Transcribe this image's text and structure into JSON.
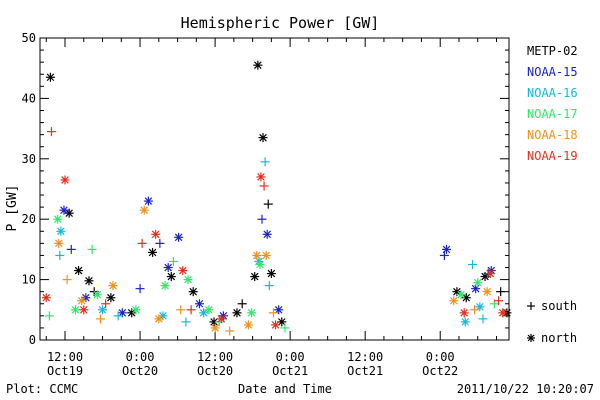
{
  "chart_data": {
    "type": "scatter",
    "title": "Hemispheric Power [GW]",
    "xlabel": "Date and Time",
    "ylabel": "P [GW]",
    "ylim": [
      0,
      50
    ],
    "xlim": [
      "2011-10-19 08:00",
      "2011-10-22 11:00"
    ],
    "yticks": [
      0,
      10,
      20,
      30,
      40,
      50
    ],
    "xticks": [
      {
        "t": "2011-10-19 12:00",
        "line1": "12:00",
        "line2": "Oct19"
      },
      {
        "t": "2011-10-20 00:00",
        "line1": "0:00",
        "line2": "Oct20"
      },
      {
        "t": "2011-10-20 12:00",
        "line1": "12:00",
        "line2": "Oct20"
      },
      {
        "t": "2011-10-21 00:00",
        "line1": "0:00",
        "line2": "Oct21"
      },
      {
        "t": "2011-10-21 12:00",
        "line1": "12:00",
        "line2": "Oct21"
      },
      {
        "t": "2011-10-22 00:00",
        "line1": "0:00",
        "line2": "Oct22"
      }
    ],
    "grid": false,
    "legend_position": "right",
    "markers": [
      {
        "symbol": "+",
        "label": "south"
      },
      {
        "symbol": "*",
        "label": "north"
      }
    ],
    "series": [
      {
        "name": "METP-02",
        "color": "#000000",
        "north": [
          {
            "x": "2011-10-19 09:40",
            "y": 43.5
          },
          {
            "x": "2011-10-19 12:40",
            "y": 21.0
          },
          {
            "x": "2011-10-19 14:10",
            "y": 11.5
          },
          {
            "x": "2011-10-19 15:50",
            "y": 9.8
          },
          {
            "x": "2011-10-19 19:20",
            "y": 7.0
          },
          {
            "x": "2011-10-19 22:40",
            "y": 4.5
          },
          {
            "x": "2011-10-20 02:00",
            "y": 14.5
          },
          {
            "x": "2011-10-20 05:00",
            "y": 10.5
          },
          {
            "x": "2011-10-20 08:30",
            "y": 8.0
          },
          {
            "x": "2011-10-20 11:50",
            "y": 3.0
          },
          {
            "x": "2011-10-20 15:30",
            "y": 4.5
          },
          {
            "x": "2011-10-20 18:20",
            "y": 10.5
          },
          {
            "x": "2011-10-20 18:50",
            "y": 45.5
          },
          {
            "x": "2011-10-20 19:40",
            "y": 33.5
          },
          {
            "x": "2011-10-20 21:00",
            "y": 11.0
          },
          {
            "x": "2011-10-20 22:40",
            "y": 3.0
          },
          {
            "x": "2011-10-22 02:40",
            "y": 8.0
          },
          {
            "x": "2011-10-22 04:10",
            "y": 7.0
          },
          {
            "x": "2011-10-22 07:10",
            "y": 10.5
          },
          {
            "x": "2011-10-22 10:40",
            "y": 4.5
          }
        ],
        "south": [
          {
            "x": "2011-10-19 16:40",
            "y": 8.0
          },
          {
            "x": "2011-10-20 16:20",
            "y": 6.0
          },
          {
            "x": "2011-10-20 20:30",
            "y": 22.5
          },
          {
            "x": "2011-10-22 09:40",
            "y": 8.0
          }
        ]
      },
      {
        "name": "NOAA-15",
        "color": "#1c23c8",
        "north": [
          {
            "x": "2011-10-19 11:50",
            "y": 21.5
          },
          {
            "x": "2011-10-19 15:20",
            "y": 7.0
          },
          {
            "x": "2011-10-19 21:10",
            "y": 4.5
          },
          {
            "x": "2011-10-20 01:20",
            "y": 23.0
          },
          {
            "x": "2011-10-20 04:30",
            "y": 12.0
          },
          {
            "x": "2011-10-20 06:10",
            "y": 17.0
          },
          {
            "x": "2011-10-20 09:30",
            "y": 6.0
          },
          {
            "x": "2011-10-20 13:20",
            "y": 4.0
          },
          {
            "x": "2011-10-20 20:20",
            "y": 17.5
          },
          {
            "x": "2011-10-20 22:10",
            "y": 5.0
          },
          {
            "x": "2011-10-22 01:00",
            "y": 15.0
          },
          {
            "x": "2011-10-22 05:40",
            "y": 8.5
          },
          {
            "x": "2011-10-22 08:10",
            "y": 11.5
          }
        ],
        "south": [
          {
            "x": "2011-10-19 13:00",
            "y": 15.0
          },
          {
            "x": "2011-10-20 00:00",
            "y": 8.5
          },
          {
            "x": "2011-10-20 03:10",
            "y": 16.0
          },
          {
            "x": "2011-10-20 19:30",
            "y": 20.0
          },
          {
            "x": "2011-10-22 00:40",
            "y": 14.0
          },
          {
            "x": "2011-10-22 07:40",
            "y": 11.0
          }
        ]
      },
      {
        "name": "NOAA-16",
        "color": "#16b8d8",
        "north": [
          {
            "x": "2011-10-19 11:20",
            "y": 18.0
          },
          {
            "x": "2011-10-19 18:00",
            "y": 5.0
          },
          {
            "x": "2011-10-20 03:40",
            "y": 4.0
          },
          {
            "x": "2011-10-20 10:10",
            "y": 4.5
          },
          {
            "x": "2011-10-20 19:00",
            "y": 13.0
          },
          {
            "x": "2011-10-22 04:00",
            "y": 3.0
          },
          {
            "x": "2011-10-22 06:20",
            "y": 5.5
          }
        ],
        "south": [
          {
            "x": "2011-10-19 11:10",
            "y": 14.0
          },
          {
            "x": "2011-10-19 20:30",
            "y": 4.0
          },
          {
            "x": "2011-10-20 07:20",
            "y": 3.0
          },
          {
            "x": "2011-10-20 20:00",
            "y": 29.5
          },
          {
            "x": "2011-10-20 20:40",
            "y": 9.0
          },
          {
            "x": "2011-10-22 05:10",
            "y": 12.5
          },
          {
            "x": "2011-10-22 06:50",
            "y": 3.5
          }
        ]
      },
      {
        "name": "NOAA-17",
        "color": "#2ee86a",
        "north": [
          {
            "x": "2011-10-19 10:50",
            "y": 20.0
          },
          {
            "x": "2011-10-19 13:40",
            "y": 5.0
          },
          {
            "x": "2011-10-19 17:10",
            "y": 7.5
          },
          {
            "x": "2011-10-19 23:20",
            "y": 5.0
          },
          {
            "x": "2011-10-20 04:00",
            "y": 9.0
          },
          {
            "x": "2011-10-20 07:40",
            "y": 10.0
          },
          {
            "x": "2011-10-20 11:00",
            "y": 5.0
          },
          {
            "x": "2011-10-20 17:50",
            "y": 4.5
          },
          {
            "x": "2011-10-20 19:10",
            "y": 12.5
          },
          {
            "x": "2011-10-22 03:20",
            "y": 7.5
          },
          {
            "x": "2011-10-22 06:00",
            "y": 9.5
          }
        ],
        "south": [
          {
            "x": "2011-10-19 09:30",
            "y": 4.0
          },
          {
            "x": "2011-10-19 16:20",
            "y": 15.0
          },
          {
            "x": "2011-10-20 05:20",
            "y": 13.0
          },
          {
            "x": "2011-10-20 12:40",
            "y": 3.0
          },
          {
            "x": "2011-10-20 23:10",
            "y": 2.0
          },
          {
            "x": "2011-10-22 08:40",
            "y": 6.0
          }
        ]
      },
      {
        "name": "NOAA-18",
        "color": "#f0901a",
        "north": [
          {
            "x": "2011-10-19 11:00",
            "y": 16.0
          },
          {
            "x": "2011-10-19 14:40",
            "y": 6.5
          },
          {
            "x": "2011-10-19 19:40",
            "y": 9.0
          },
          {
            "x": "2011-10-20 00:40",
            "y": 21.5
          },
          {
            "x": "2011-10-20 03:00",
            "y": 3.5
          },
          {
            "x": "2011-10-20 12:00",
            "y": 2.0
          },
          {
            "x": "2011-10-20 17:20",
            "y": 2.5
          },
          {
            "x": "2011-10-20 18:40",
            "y": 14.0
          },
          {
            "x": "2011-10-20 20:10",
            "y": 14.0
          },
          {
            "x": "2011-10-22 02:10",
            "y": 6.5
          },
          {
            "x": "2011-10-22 07:30",
            "y": 8.0
          }
        ],
        "south": [
          {
            "x": "2011-10-19 12:20",
            "y": 10.0
          },
          {
            "x": "2011-10-19 17:40",
            "y": 3.5
          },
          {
            "x": "2011-10-20 06:30",
            "y": 5.0
          },
          {
            "x": "2011-10-20 14:20",
            "y": 1.5
          },
          {
            "x": "2011-10-20 21:20",
            "y": 4.5
          },
          {
            "x": "2011-10-22 05:30",
            "y": 5.0
          }
        ]
      },
      {
        "name": "NOAA-19",
        "color": "#e0301e",
        "north": [
          {
            "x": "2011-10-19 09:00",
            "y": 7.0
          },
          {
            "x": "2011-10-19 12:00",
            "y": 26.5
          },
          {
            "x": "2011-10-19 15:00",
            "y": 5.0
          },
          {
            "x": "2011-10-20 02:30",
            "y": 17.5
          },
          {
            "x": "2011-10-20 06:50",
            "y": 11.5
          },
          {
            "x": "2011-10-20 13:00",
            "y": 3.5
          },
          {
            "x": "2011-10-20 19:20",
            "y": 27.0
          },
          {
            "x": "2011-10-20 21:40",
            "y": 2.5
          },
          {
            "x": "2011-10-22 03:50",
            "y": 4.5
          },
          {
            "x": "2011-10-22 08:00",
            "y": 11.0
          },
          {
            "x": "2011-10-22 10:00",
            "y": 4.5
          }
        ],
        "south": [
          {
            "x": "2011-10-19 09:50",
            "y": 34.5
          },
          {
            "x": "2011-10-19 18:30",
            "y": 6.0
          },
          {
            "x": "2011-10-20 00:20",
            "y": 16.0
          },
          {
            "x": "2011-10-20 08:10",
            "y": 5.0
          },
          {
            "x": "2011-10-20 19:50",
            "y": 25.5
          },
          {
            "x": "2011-10-22 09:20",
            "y": 6.5
          }
        ]
      }
    ]
  },
  "footer": {
    "plot_credit": "Plot: CCMC",
    "timestamp": "2011/10/22 10:20:07"
  }
}
